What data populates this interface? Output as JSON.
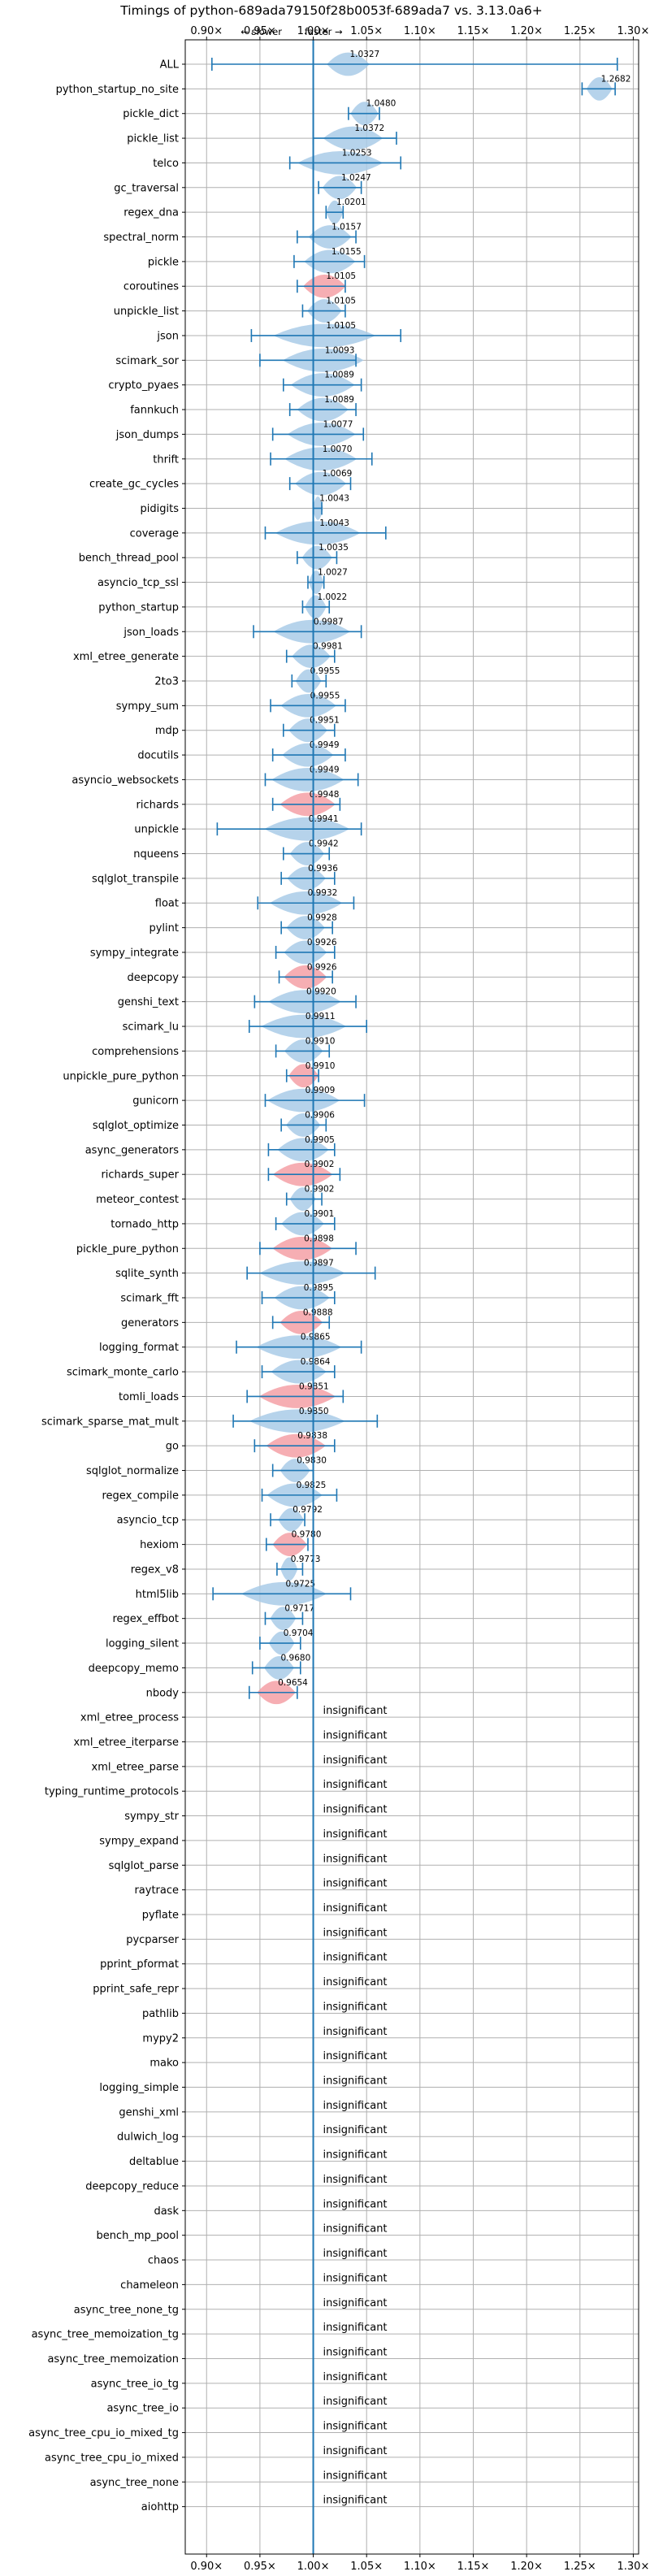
{
  "chart_data": {
    "type": "violin",
    "title": "Timings of python-689ada79150f28b0053f-689ada7 vs. 3.13.0a6+",
    "direction_labels": {
      "slower": "← slower",
      "faster": "faster →"
    },
    "xlim": [
      0.88,
      1.305
    ],
    "x_ticks": [
      0.9,
      0.95,
      1.0,
      1.05,
      1.1,
      1.15,
      1.2,
      1.25,
      1.3
    ],
    "x_tick_labels": [
      "0.90×",
      "0.95×",
      "1.00×",
      "1.05×",
      "1.10×",
      "1.15×",
      "1.20×",
      "1.25×",
      "1.30×"
    ],
    "grid": true,
    "reference_line": 1.0,
    "colors": {
      "faster": "#a9cbe8",
      "slower": "#f5a0a6",
      "line": "#1f77b4",
      "grid": "#b0b0b0"
    },
    "insignificant_label": "insignificant",
    "benchmarks": [
      {
        "name": "ALL",
        "value": 1.0327,
        "label": "1.0327",
        "lo": 0.905,
        "hi": 1.285,
        "w": 0.02,
        "color": "blue"
      },
      {
        "name": "python_startup_no_site",
        "value": 1.2682,
        "label": "1.2682",
        "lo": 1.252,
        "hi": 1.283,
        "w": 0.012,
        "color": "blue"
      },
      {
        "name": "pickle_dict",
        "value": 1.048,
        "label": "1.0480",
        "lo": 1.033,
        "hi": 1.062,
        "w": 0.013,
        "color": "blue"
      },
      {
        "name": "pickle_list",
        "value": 1.0372,
        "label": "1.0372",
        "lo": 1.0,
        "hi": 1.078,
        "w": 0.028,
        "color": "blue"
      },
      {
        "name": "telco",
        "value": 1.0253,
        "label": "1.0253",
        "lo": 0.978,
        "hi": 1.082,
        "w": 0.04,
        "color": "blue"
      },
      {
        "name": "gc_traversal",
        "value": 1.0247,
        "label": "1.0247",
        "lo": 1.005,
        "hi": 1.045,
        "w": 0.016,
        "color": "blue"
      },
      {
        "name": "regex_dna",
        "value": 1.0201,
        "label": "1.0201",
        "lo": 1.012,
        "hi": 1.028,
        "w": 0.008,
        "color": "blue"
      },
      {
        "name": "spectral_norm",
        "value": 1.0157,
        "label": "1.0157",
        "lo": 0.985,
        "hi": 1.04,
        "w": 0.02,
        "color": "blue"
      },
      {
        "name": "pickle",
        "value": 1.0155,
        "label": "1.0155",
        "lo": 0.982,
        "hi": 1.048,
        "w": 0.024,
        "color": "blue"
      },
      {
        "name": "coroutines",
        "value": 1.0105,
        "label": "1.0105",
        "lo": 0.985,
        "hi": 1.03,
        "w": 0.02,
        "color": "red"
      },
      {
        "name": "unpickle_list",
        "value": 1.0105,
        "label": "1.0105",
        "lo": 0.99,
        "hi": 1.03,
        "w": 0.016,
        "color": "blue"
      },
      {
        "name": "json",
        "value": 1.0105,
        "label": "1.0105",
        "lo": 0.942,
        "hi": 1.082,
        "w": 0.048,
        "color": "blue"
      },
      {
        "name": "scimark_sor",
        "value": 1.0093,
        "label": "1.0093",
        "lo": 0.95,
        "hi": 1.04,
        "w": 0.038,
        "color": "blue"
      },
      {
        "name": "crypto_pyaes",
        "value": 1.0089,
        "label": "1.0089",
        "lo": 0.972,
        "hi": 1.045,
        "w": 0.03,
        "color": "blue"
      },
      {
        "name": "fannkuch",
        "value": 1.0089,
        "label": "1.0089",
        "lo": 0.978,
        "hi": 1.04,
        "w": 0.024,
        "color": "blue"
      },
      {
        "name": "json_dumps",
        "value": 1.0077,
        "label": "1.0077",
        "lo": 0.962,
        "hi": 1.047,
        "w": 0.032,
        "color": "blue"
      },
      {
        "name": "thrift",
        "value": 1.007,
        "label": "1.0070",
        "lo": 0.96,
        "hi": 1.055,
        "w": 0.034,
        "color": "blue"
      },
      {
        "name": "create_gc_cycles",
        "value": 1.0069,
        "label": "1.0069",
        "lo": 0.978,
        "hi": 1.035,
        "w": 0.024,
        "color": "blue"
      },
      {
        "name": "pidigits",
        "value": 1.0043,
        "label": "1.0043",
        "lo": 1.0,
        "hi": 1.008,
        "w": 0.005,
        "color": "blue"
      },
      {
        "name": "coverage",
        "value": 1.0043,
        "label": "1.0043",
        "lo": 0.955,
        "hi": 1.068,
        "w": 0.04,
        "color": "blue"
      },
      {
        "name": "bench_thread_pool",
        "value": 1.0035,
        "label": "1.0035",
        "lo": 0.985,
        "hi": 1.022,
        "w": 0.014,
        "color": "blue"
      },
      {
        "name": "asyncio_tcp_ssl",
        "value": 1.0027,
        "label": "1.0027",
        "lo": 0.995,
        "hi": 1.01,
        "w": 0.007,
        "color": "blue"
      },
      {
        "name": "python_startup",
        "value": 1.0022,
        "label": "1.0022",
        "lo": 0.99,
        "hi": 1.015,
        "w": 0.01,
        "color": "blue"
      },
      {
        "name": "json_loads",
        "value": 0.9987,
        "label": "0.9987",
        "lo": 0.944,
        "hi": 1.045,
        "w": 0.036,
        "color": "blue"
      },
      {
        "name": "xml_etree_generate",
        "value": 0.9981,
        "label": "0.9981",
        "lo": 0.975,
        "hi": 1.02,
        "w": 0.018,
        "color": "blue"
      },
      {
        "name": "2to3",
        "value": 0.9955,
        "label": "0.9955",
        "lo": 0.98,
        "hi": 1.012,
        "w": 0.012,
        "color": "blue"
      },
      {
        "name": "sympy_sum",
        "value": 0.9955,
        "label": "0.9955",
        "lo": 0.96,
        "hi": 1.03,
        "w": 0.026,
        "color": "blue"
      },
      {
        "name": "mdp",
        "value": 0.9951,
        "label": "0.9951",
        "lo": 0.972,
        "hi": 1.02,
        "w": 0.018,
        "color": "blue"
      },
      {
        "name": "docutils",
        "value": 0.9949,
        "label": "0.9949",
        "lo": 0.962,
        "hi": 1.03,
        "w": 0.024,
        "color": "blue"
      },
      {
        "name": "asyncio_websockets",
        "value": 0.9949,
        "label": "0.9949",
        "lo": 0.955,
        "hi": 1.042,
        "w": 0.034,
        "color": "blue"
      },
      {
        "name": "richards",
        "value": 0.9948,
        "label": "0.9948",
        "lo": 0.962,
        "hi": 1.025,
        "w": 0.026,
        "color": "red"
      },
      {
        "name": "unpickle",
        "value": 0.9941,
        "label": "0.9941",
        "lo": 0.91,
        "hi": 1.045,
        "w": 0.04,
        "color": "blue"
      },
      {
        "name": "nqueens",
        "value": 0.9942,
        "label": "0.9942",
        "lo": 0.972,
        "hi": 1.015,
        "w": 0.016,
        "color": "blue"
      },
      {
        "name": "sqlglot_transpile",
        "value": 0.9936,
        "label": "0.9936",
        "lo": 0.97,
        "hi": 1.02,
        "w": 0.018,
        "color": "blue"
      },
      {
        "name": "float",
        "value": 0.9932,
        "label": "0.9932",
        "lo": 0.948,
        "hi": 1.038,
        "w": 0.034,
        "color": "blue"
      },
      {
        "name": "pylint",
        "value": 0.9928,
        "label": "0.9928",
        "lo": 0.97,
        "hi": 1.018,
        "w": 0.018,
        "color": "blue"
      },
      {
        "name": "sympy_integrate",
        "value": 0.9926,
        "label": "0.9926",
        "lo": 0.965,
        "hi": 1.02,
        "w": 0.02,
        "color": "blue"
      },
      {
        "name": "deepcopy",
        "value": 0.9926,
        "label": "0.9926",
        "lo": 0.968,
        "hi": 1.018,
        "w": 0.02,
        "color": "red"
      },
      {
        "name": "genshi_text",
        "value": 0.992,
        "label": "0.9920",
        "lo": 0.945,
        "hi": 1.04,
        "w": 0.034,
        "color": "blue"
      },
      {
        "name": "scimark_lu",
        "value": 0.9911,
        "label": "0.9911",
        "lo": 0.94,
        "hi": 1.05,
        "w": 0.04,
        "color": "blue"
      },
      {
        "name": "comprehensions",
        "value": 0.991,
        "label": "0.9910",
        "lo": 0.965,
        "hi": 1.015,
        "w": 0.018,
        "color": "blue"
      },
      {
        "name": "unpickle_pure_python",
        "value": 0.991,
        "label": "0.9910",
        "lo": 0.975,
        "hi": 1.005,
        "w": 0.014,
        "color": "red"
      },
      {
        "name": "gunicorn",
        "value": 0.9909,
        "label": "0.9909",
        "lo": 0.955,
        "hi": 1.048,
        "w": 0.034,
        "color": "blue"
      },
      {
        "name": "sqlglot_optimize",
        "value": 0.9906,
        "label": "0.9906",
        "lo": 0.97,
        "hi": 1.012,
        "w": 0.016,
        "color": "blue"
      },
      {
        "name": "async_generators",
        "value": 0.9905,
        "label": "0.9905",
        "lo": 0.958,
        "hi": 1.02,
        "w": 0.024,
        "color": "blue"
      },
      {
        "name": "richards_super",
        "value": 0.9902,
        "label": "0.9902",
        "lo": 0.958,
        "hi": 1.025,
        "w": 0.028,
        "color": "red"
      },
      {
        "name": "meteor_contest",
        "value": 0.9902,
        "label": "0.9902",
        "lo": 0.975,
        "hi": 1.008,
        "w": 0.012,
        "color": "blue"
      },
      {
        "name": "tornado_http",
        "value": 0.9901,
        "label": "0.9901",
        "lo": 0.965,
        "hi": 1.02,
        "w": 0.02,
        "color": "blue"
      },
      {
        "name": "pickle_pure_python",
        "value": 0.9898,
        "label": "0.9898",
        "lo": 0.95,
        "hi": 1.04,
        "w": 0.028,
        "color": "red"
      },
      {
        "name": "sqlite_synth",
        "value": 0.9897,
        "label": "0.9897",
        "lo": 0.938,
        "hi": 1.058,
        "w": 0.04,
        "color": "blue"
      },
      {
        "name": "scimark_fft",
        "value": 0.9895,
        "label": "0.9895",
        "lo": 0.952,
        "hi": 1.02,
        "w": 0.026,
        "color": "blue"
      },
      {
        "name": "generators",
        "value": 0.9888,
        "label": "0.9888",
        "lo": 0.962,
        "hi": 1.015,
        "w": 0.02,
        "color": "red"
      },
      {
        "name": "logging_format",
        "value": 0.9865,
        "label": "0.9865",
        "lo": 0.928,
        "hi": 1.045,
        "w": 0.04,
        "color": "blue"
      },
      {
        "name": "scimark_monte_carlo",
        "value": 0.9864,
        "label": "0.9864",
        "lo": 0.952,
        "hi": 1.02,
        "w": 0.026,
        "color": "blue"
      },
      {
        "name": "tomli_loads",
        "value": 0.9851,
        "label": "0.9851",
        "lo": 0.938,
        "hi": 1.028,
        "w": 0.036,
        "color": "red"
      },
      {
        "name": "scimark_sparse_mat_mult",
        "value": 0.985,
        "label": "0.9850",
        "lo": 0.925,
        "hi": 1.06,
        "w": 0.045,
        "color": "blue"
      },
      {
        "name": "go",
        "value": 0.9838,
        "label": "0.9838",
        "lo": 0.945,
        "hi": 1.02,
        "w": 0.028,
        "color": "red"
      },
      {
        "name": "sqlglot_normalize",
        "value": 0.983,
        "label": "0.9830",
        "lo": 0.962,
        "hi": 1.0,
        "w": 0.014,
        "color": "blue"
      },
      {
        "name": "regex_compile",
        "value": 0.9825,
        "label": "0.9825",
        "lo": 0.952,
        "hi": 1.022,
        "w": 0.026,
        "color": "blue"
      },
      {
        "name": "asyncio_tcp",
        "value": 0.9792,
        "label": "0.9792",
        "lo": 0.96,
        "hi": 0.992,
        "w": 0.012,
        "color": "blue"
      },
      {
        "name": "hexiom",
        "value": 0.978,
        "label": "0.9780",
        "lo": 0.956,
        "hi": 0.995,
        "w": 0.016,
        "color": "red"
      },
      {
        "name": "regex_v8",
        "value": 0.9773,
        "label": "0.9773",
        "lo": 0.966,
        "hi": 0.99,
        "w": 0.008,
        "color": "blue"
      },
      {
        "name": "html5lib",
        "value": 0.9725,
        "label": "0.9725",
        "lo": 0.906,
        "hi": 1.035,
        "w": 0.04,
        "color": "blue"
      },
      {
        "name": "regex_effbot",
        "value": 0.9717,
        "label": "0.9717",
        "lo": 0.955,
        "hi": 0.99,
        "w": 0.012,
        "color": "blue"
      },
      {
        "name": "logging_silent",
        "value": 0.9704,
        "label": "0.9704",
        "lo": 0.95,
        "hi": 0.988,
        "w": 0.012,
        "color": "blue"
      },
      {
        "name": "deepcopy_memo",
        "value": 0.968,
        "label": "0.9680",
        "lo": 0.943,
        "hi": 0.988,
        "w": 0.014,
        "color": "blue"
      },
      {
        "name": "nbody",
        "value": 0.9654,
        "label": "0.9654",
        "lo": 0.94,
        "hi": 0.985,
        "w": 0.018,
        "color": "red"
      }
    ],
    "insignificant": [
      "xml_etree_process",
      "xml_etree_iterparse",
      "xml_etree_parse",
      "typing_runtime_protocols",
      "sympy_str",
      "sympy_expand",
      "sqlglot_parse",
      "raytrace",
      "pyflate",
      "pycparser",
      "pprint_pformat",
      "pprint_safe_repr",
      "pathlib",
      "mypy2",
      "mako",
      "logging_simple",
      "genshi_xml",
      "dulwich_log",
      "deltablue",
      "deepcopy_reduce",
      "dask",
      "bench_mp_pool",
      "chaos",
      "chameleon",
      "async_tree_none_tg",
      "async_tree_memoization_tg",
      "async_tree_memoization",
      "async_tree_io_tg",
      "async_tree_io",
      "async_tree_cpu_io_mixed_tg",
      "async_tree_cpu_io_mixed",
      "async_tree_none",
      "aiohttp"
    ]
  }
}
